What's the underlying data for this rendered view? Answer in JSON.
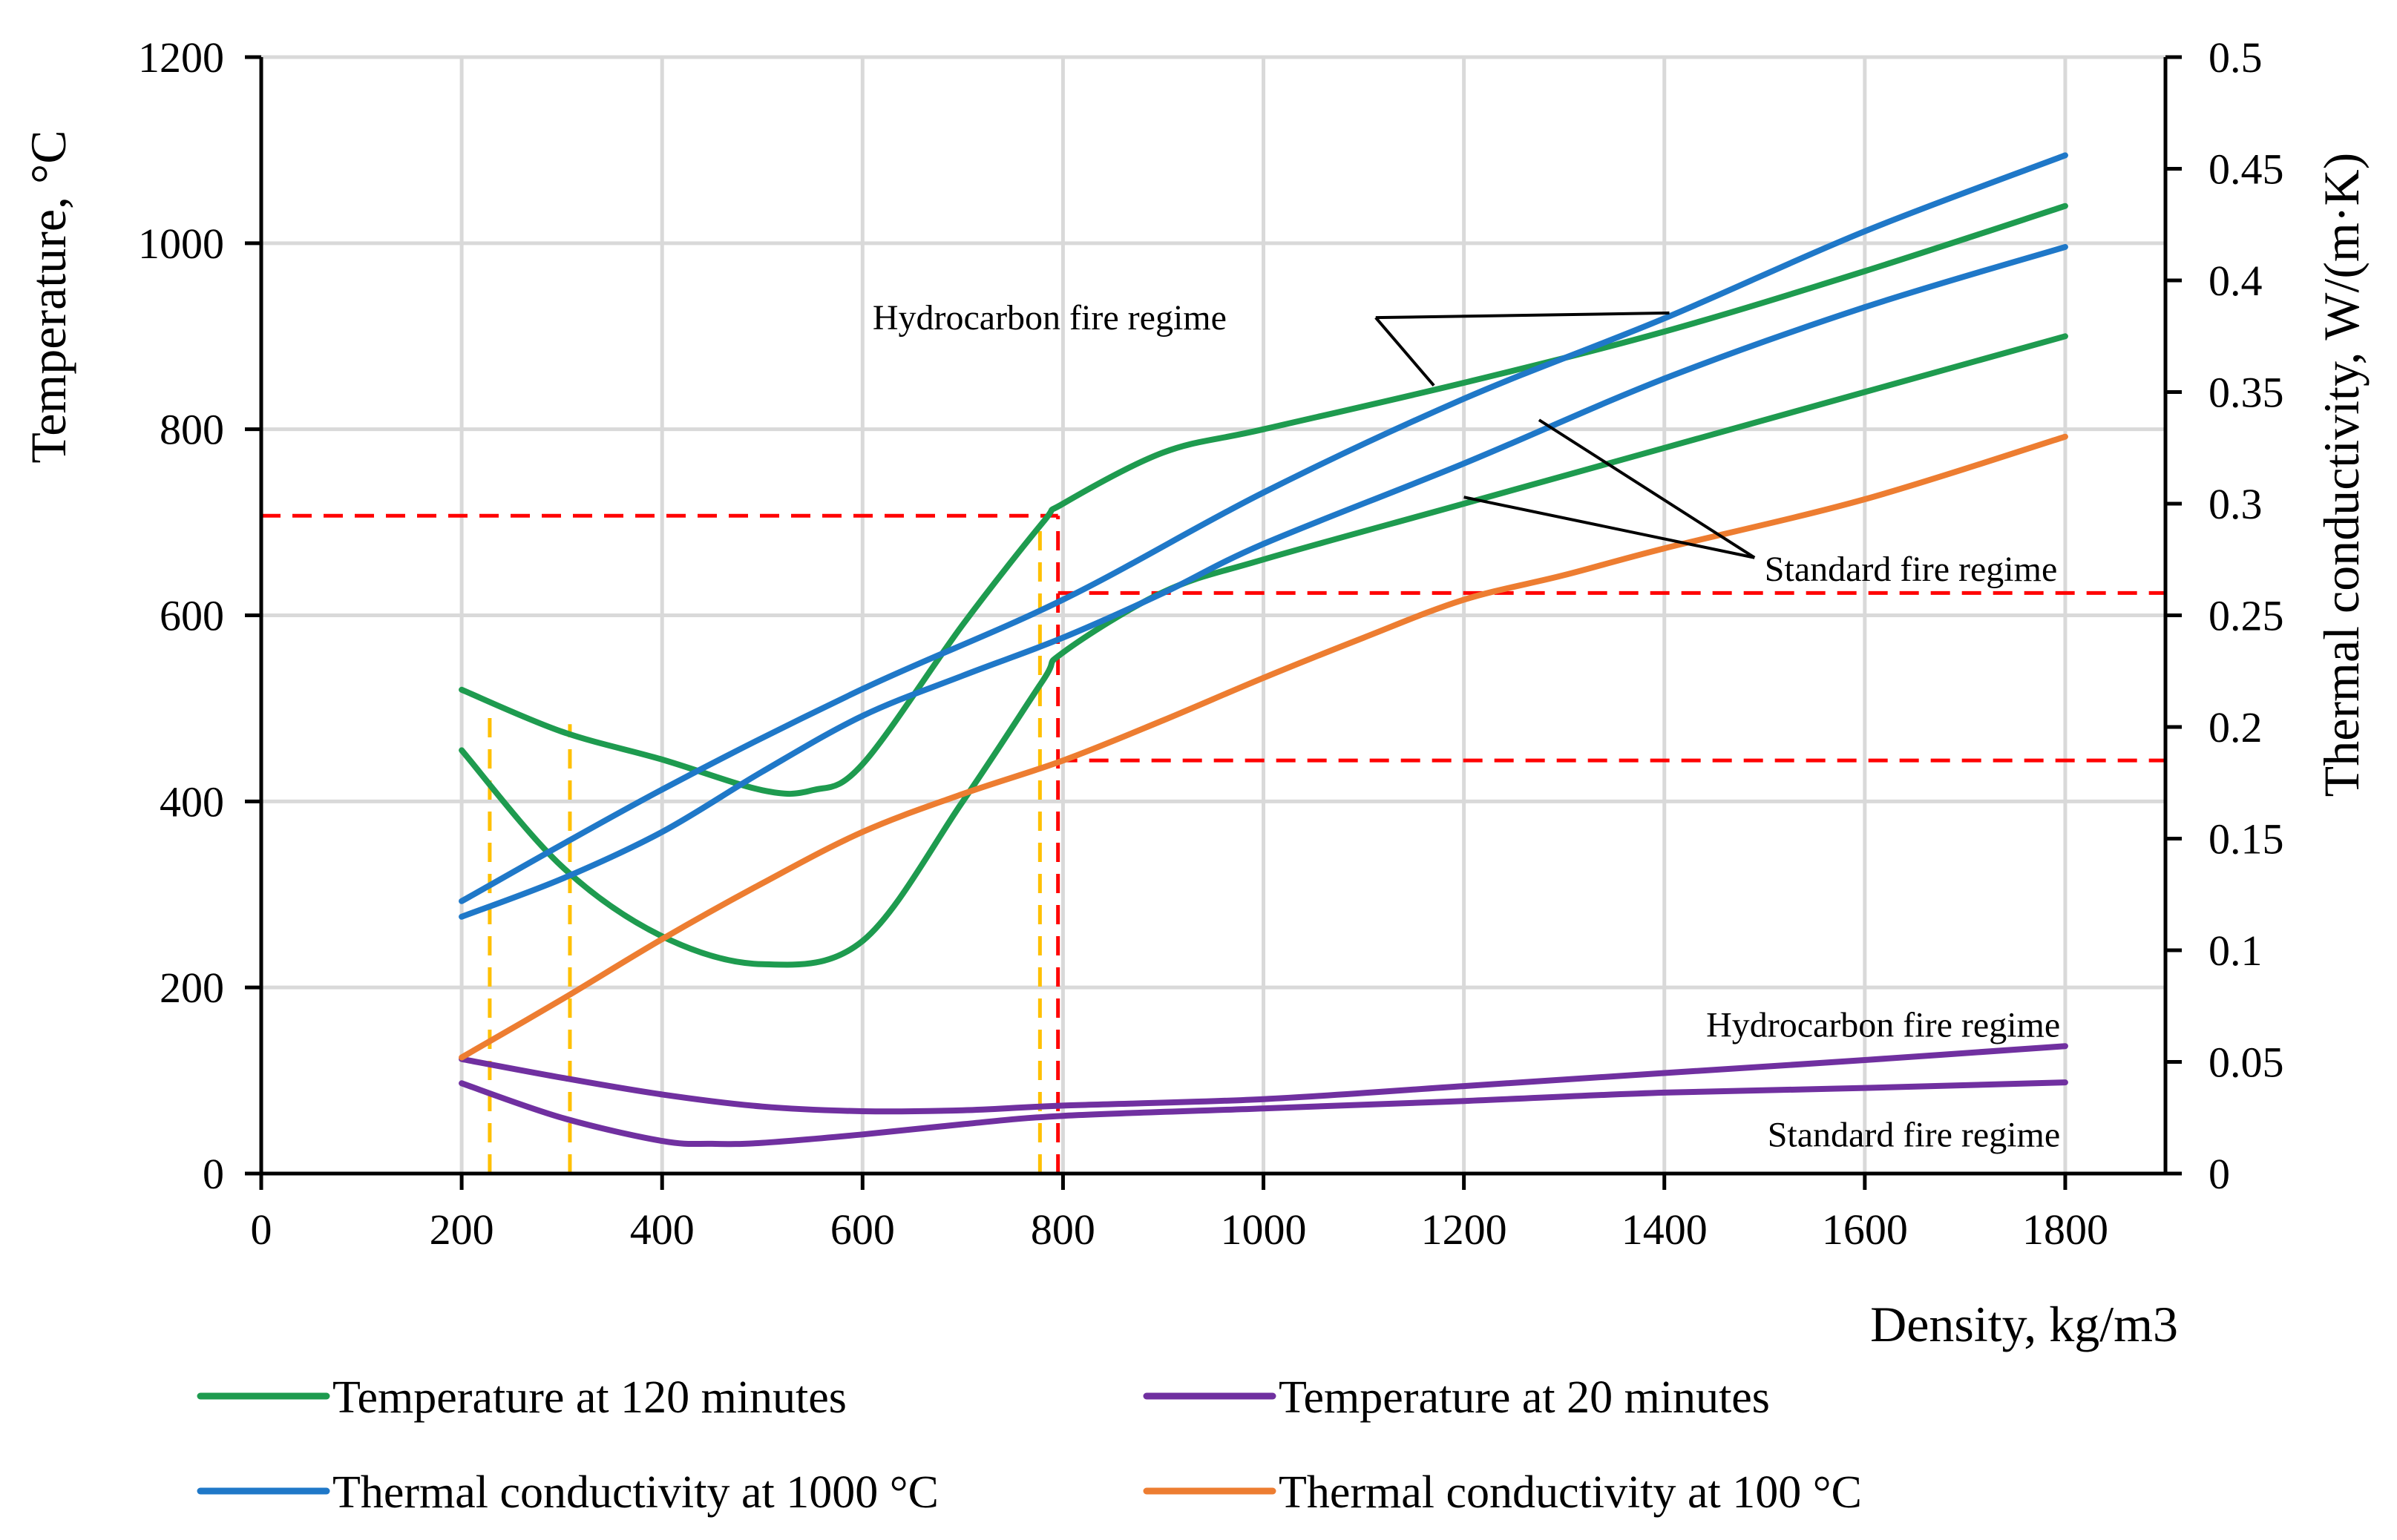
{
  "chart_data": {
    "type": "line",
    "xlabel": "Density, kg/m3",
    "ylabel": "Temperature, °C",
    "y2label": "Thermal conductivity, W/(m·K)",
    "xlim": [
      0,
      1900
    ],
    "ylim": [
      0,
      1200
    ],
    "y2lim": [
      0,
      0.5
    ],
    "x_ticks": [
      0,
      200,
      400,
      600,
      800,
      1000,
      1200,
      1400,
      1600,
      1800
    ],
    "y_ticks": [
      0,
      200,
      400,
      600,
      800,
      1000,
      1200
    ],
    "y2_ticks": [
      "0",
      "0.05",
      "0.1",
      "0.15",
      "0.2",
      "0.25",
      "0.3",
      "0.35",
      "0.4",
      "0.45",
      "0.5"
    ],
    "grid": true,
    "legend_position": "bottom",
    "colors": {
      "temp120": "#1e9b4f",
      "temp20": "#7030a0",
      "tc1000": "#1f78c8",
      "tc100": "#ed7d31",
      "guide_red": "#ff0000",
      "guide_orange": "#ffc000"
    },
    "legend": [
      {
        "label": "Temperature at 120 minutes",
        "color_key": "temp120"
      },
      {
        "label": "Temperature at 20 minutes",
        "color_key": "temp20"
      },
      {
        "label": "Thermal conductivity at 1000 °C",
        "color_key": "tc1000"
      },
      {
        "label": "Thermal conductivity at 100 °C",
        "color_key": "tc100"
      }
    ],
    "series": [
      {
        "legend": "Temperature at 120 minutes",
        "axis": "left",
        "color_key": "temp120",
        "x": [
          200,
          300,
          400,
          500,
          550,
          600,
          700,
          780,
          800,
          900,
          1000,
          1200,
          1400,
          1600,
          1800
        ],
        "y": [
          520,
          475,
          445,
          412,
          412,
          440,
          590,
          700,
          720,
          775,
          800,
          850,
          905,
          970,
          1040
        ]
      },
      {
        "legend": "Temperature at 120 minutes",
        "axis": "left",
        "color_key": "temp120",
        "x": [
          200,
          300,
          400,
          500,
          600,
          700,
          780,
          800,
          900,
          1000,
          1200,
          1400,
          1600,
          1800
        ],
        "y": [
          455,
          330,
          255,
          225,
          250,
          400,
          530,
          560,
          625,
          660,
          720,
          780,
          840,
          900
        ]
      },
      {
        "legend": "Temperature at 20 minutes",
        "axis": "left",
        "color_key": "temp20",
        "x": [
          200,
          300,
          400,
          500,
          600,
          700,
          800,
          1000,
          1200,
          1400,
          1600,
          1800
        ],
        "y": [
          123,
          103,
          85,
          72,
          67,
          68,
          73,
          80,
          94,
          108,
          122,
          137
        ]
      },
      {
        "legend": "Temperature at 20 minutes",
        "axis": "left",
        "color_key": "temp20",
        "x": [
          200,
          300,
          400,
          450,
          500,
          600,
          700,
          800,
          1000,
          1200,
          1400,
          1600,
          1800
        ],
        "y": [
          97,
          60,
          35,
          32,
          33,
          42,
          53,
          62,
          70,
          78,
          87,
          92,
          98
        ]
      },
      {
        "legend": "Thermal conductivity at 1000 °C",
        "axis": "right",
        "color_key": "tc1000",
        "x": [
          200,
          400,
          600,
          800,
          1000,
          1200,
          1400,
          1600,
          1800
        ],
        "y": [
          0.122,
          0.172,
          0.217,
          0.257,
          0.305,
          0.347,
          0.383,
          0.422,
          0.456
        ]
      },
      {
        "legend": "Thermal conductivity at 1000 °C",
        "axis": "right",
        "color_key": "tc1000",
        "x": [
          200,
          300,
          400,
          500,
          600,
          700,
          800,
          900,
          1000,
          1200,
          1400,
          1600,
          1800
        ],
        "y": [
          0.115,
          0.132,
          0.153,
          0.18,
          0.205,
          0.223,
          0.24,
          0.26,
          0.282,
          0.318,
          0.356,
          0.388,
          0.415
        ]
      },
      {
        "legend": "Thermal conductivity at 100 °C",
        "axis": "right",
        "color_key": "tc100",
        "x": [
          200,
          300,
          400,
          500,
          600,
          700,
          800,
          900,
          1000,
          1100,
          1200,
          1300,
          1400,
          1600,
          1800
        ],
        "y": [
          0.052,
          0.078,
          0.105,
          0.13,
          0.153,
          0.17,
          0.185,
          0.203,
          0.222,
          0.24,
          0.257,
          0.268,
          0.28,
          0.302,
          0.33
        ]
      }
    ],
    "guides": {
      "red_h_left": {
        "y": 707,
        "x_from": 0,
        "x_to": 795
      },
      "red_v": {
        "x": 795,
        "y_from": 0,
        "y_to": 707
      },
      "red_h_right_upper": {
        "y2": 0.26,
        "x_from": 795
      },
      "red_h_right_lower": {
        "y2": 0.185,
        "x_from": 795
      },
      "orange_v": [
        {
          "x": 228,
          "y_top": 500
        },
        {
          "x": 308,
          "y_top": 483
        },
        {
          "x": 777,
          "y_top": 700
        }
      ]
    },
    "annotations": [
      {
        "text": "Hydrocarbon fire regime",
        "x": 610,
        "y": 920,
        "anchor": "start",
        "pointer_from": {
          "x": 1112,
          "y": 920
        },
        "pointer_to": [
          {
            "x": 1405,
            "y": 925
          },
          {
            "x": 1170,
            "y": 847
          }
        ]
      },
      {
        "text": "Standard fire regime",
        "x": 1500,
        "y": 650,
        "anchor": "start",
        "pointer_from": {
          "x": 1490,
          "y": 662
        },
        "pointer_to": [
          {
            "x": 1200,
            "y": 727
          },
          {
            "x": 1275,
            "y": 810
          }
        ]
      },
      {
        "text": "Hydrocarbon fire regime",
        "x": 1795,
        "y": 160,
        "anchor": "end"
      },
      {
        "text": "Standard fire regime",
        "x": 1795,
        "y": 42,
        "anchor": "end"
      }
    ]
  }
}
